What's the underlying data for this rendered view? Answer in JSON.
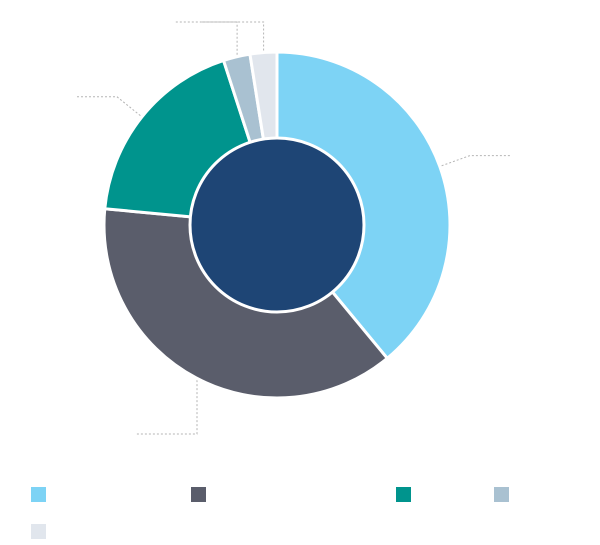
{
  "chart_data": {
    "type": "pie",
    "categories": [
      "",
      "",
      "",
      "",
      ""
    ],
    "values": [
      39,
      37.5,
      18.5,
      2.5,
      2.5
    ],
    "colors": [
      "#7dd3f5",
      "#5a5d6b",
      "#00948d",
      "#a9c1d1",
      "#e1e6ed"
    ],
    "center_color": "#1e4575",
    "title": "",
    "legend": [
      "",
      "",
      "",
      "",
      ""
    ]
  }
}
